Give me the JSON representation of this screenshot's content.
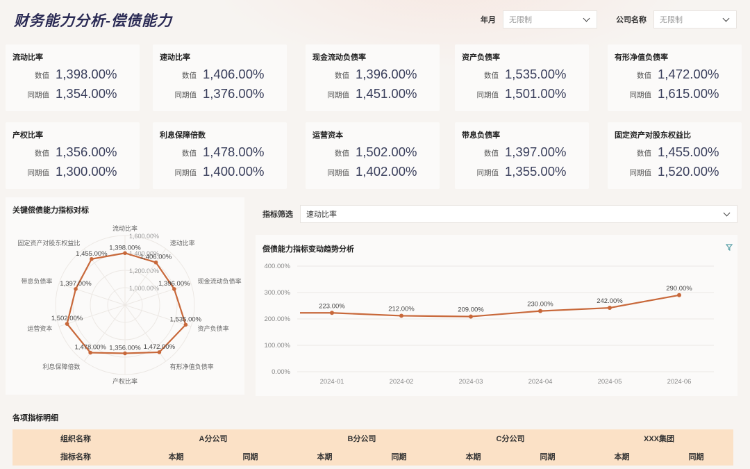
{
  "header": {
    "title": "财务能力分析-偿债能力",
    "filters": [
      {
        "label": "年月",
        "value": "无限制"
      },
      {
        "label": "公司名称",
        "value": "无限制"
      }
    ]
  },
  "kpis": [
    {
      "title": "流动比率",
      "value_label": "数值",
      "value": "1,398.00%",
      "prior_label": "同期值",
      "prior": "1,354.00%"
    },
    {
      "title": "速动比率",
      "value_label": "数值",
      "value": "1,406.00%",
      "prior_label": "同期值",
      "prior": "1,376.00%"
    },
    {
      "title": "现金流动负债率",
      "value_label": "数值",
      "value": "1,396.00%",
      "prior_label": "同期值",
      "prior": "1,451.00%"
    },
    {
      "title": "资产负债率",
      "value_label": "数值",
      "value": "1,535.00%",
      "prior_label": "同期值",
      "prior": "1,501.00%"
    },
    {
      "title": "有形净值负债率",
      "value_label": "数值",
      "value": "1,472.00%",
      "prior_label": "同期值",
      "prior": "1,615.00%"
    },
    {
      "title": "产权比率",
      "value_label": "数值",
      "value": "1,356.00%",
      "prior_label": "同期值",
      "prior": "1,300.00%"
    },
    {
      "title": "利息保障倍数",
      "value_label": "数值",
      "value": "1,478.00%",
      "prior_label": "同期值",
      "prior": "1,400.00%"
    },
    {
      "title": "运营资本",
      "value_label": "数值",
      "value": "1,502.00%",
      "prior_label": "同期值",
      "prior": "1,402.00%"
    },
    {
      "title": "带息负债率",
      "value_label": "数值",
      "value": "1,397.00%",
      "prior_label": "同期值",
      "prior": "1,355.00%"
    },
    {
      "title": "固定资产对股东权益比",
      "value_label": "数值",
      "value": "1,455.00%",
      "prior_label": "同期值",
      "prior": "1,520.00%"
    }
  ],
  "radar": {
    "title": "关键偿债能力指标对标",
    "color": "#c8683a",
    "axes": [
      "流动比率",
      "速动比率",
      "现金流动负债率",
      "资产负债率",
      "有形净值负债率",
      "产权比率",
      "利息保障倍数",
      "运营资本",
      "带息负债率",
      "固定资产对股东权益比"
    ],
    "values": [
      1398,
      1406,
      1396,
      1535,
      1472,
      1356,
      1478,
      1502,
      1397,
      1455
    ],
    "value_labels": [
      "1,398.00%",
      "1,406.00%",
      "1,396.00%",
      "1,535.00%",
      "1,472.00%",
      "1,356.00%",
      "1,478.00%",
      "1,502.00%",
      "1,397.00%",
      "1,455.00%"
    ],
    "ring_min": 800,
    "ring_max": 1600,
    "ring_ticks": [
      1000,
      1200,
      1400,
      1600
    ],
    "ring_labels": [
      "1,000.00%",
      "1,200.00%",
      "1,400.00%",
      "1,600.00%"
    ]
  },
  "indicator_filter": {
    "label": "指标筛选",
    "value": "速动比率"
  },
  "trend": {
    "title": "偿债能力指标变动趋势分析",
    "color": "#c8683a"
  },
  "chart_data": {
    "type": "line",
    "title": "偿债能力指标变动趋势分析",
    "categories": [
      "2024-01",
      "2024-02",
      "2024-03",
      "2024-04",
      "2024-05",
      "2024-06"
    ],
    "values": [
      223,
      212,
      209,
      230,
      242,
      290
    ],
    "value_labels": [
      "223.00%",
      "212.00%",
      "209.00%",
      "230.00%",
      "242.00%",
      "290.00%"
    ],
    "ylim": [
      0,
      400
    ],
    "yticks": [
      0,
      100,
      200,
      300,
      400
    ],
    "ytick_labels": [
      "0.00%",
      "100.00%",
      "200.00%",
      "300.00%",
      "400.00%"
    ],
    "grid": true
  },
  "table": {
    "title": "各项指标明细",
    "header1": {
      "first": "组织名称",
      "groups": [
        "A分公司",
        "B分公司",
        "C分公司",
        "XXX集团"
      ]
    },
    "header2": {
      "first": "指标名称",
      "current": "本期",
      "prior": "同期"
    }
  }
}
